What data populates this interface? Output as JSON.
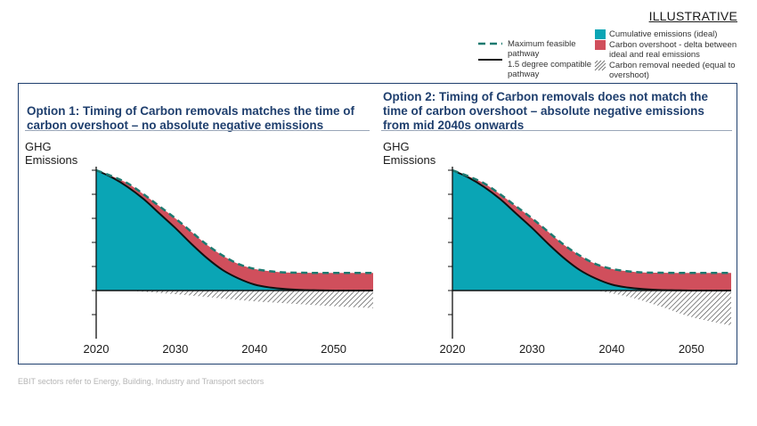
{
  "tag": "ILLUSTRATIVE",
  "legend": {
    "max_feasible": "Maximum feasible pathway",
    "one_five": "1.5 degree compatible pathway",
    "cumulative": "Cumulative emissions (ideal)",
    "overshoot": "Carbon overshoot - delta between ideal and real emissions",
    "removal": "Carbon removal needed (equal to overshoot)"
  },
  "colors": {
    "teal": "#0aa5b5",
    "red": "#d04f5c",
    "navy": "#1f3f6e",
    "dash": "#1d7a70"
  },
  "footnote": "EBIT sectors refer to Energy, Building, Industry and Transport sectors",
  "chart_data": [
    {
      "type": "area",
      "title": "Option 1: Timing of Carbon removals matches the time of carbon overshoot – no absolute negative emissions",
      "ylabel": "GHG Emissions",
      "xlabel": "",
      "x_ticks": [
        2020,
        2030,
        2040,
        2050
      ],
      "xlim": [
        2020,
        2055
      ],
      "series": [
        {
          "name": "Cumulative emissions (ideal)",
          "x": [
            2020,
            2022,
            2024,
            2026,
            2028,
            2030,
            2032,
            2034,
            2036,
            2038,
            2040,
            2042,
            2044,
            2046,
            2048,
            2050,
            2052,
            2055
          ],
          "values": [
            100,
            94,
            86,
            76,
            64,
            52,
            39,
            27,
            17,
            10,
            5,
            2.5,
            1.2,
            0.5,
            0.2,
            0,
            0,
            0
          ]
        },
        {
          "name": "Maximum feasible pathway",
          "x": [
            2020,
            2022,
            2024,
            2026,
            2028,
            2030,
            2032,
            2034,
            2036,
            2038,
            2040,
            2042,
            2044,
            2046,
            2048,
            2050,
            2052,
            2055
          ],
          "values": [
            100,
            95,
            89,
            80,
            70,
            60,
            49,
            38,
            29,
            22,
            18,
            16,
            15,
            14.8,
            14.6,
            14.6,
            14.6,
            14.6
          ]
        },
        {
          "name": "Carbon removal needed (equal to overshoot)",
          "x": [
            2024,
            2030,
            2035,
            2040,
            2045,
            2050,
            2055
          ],
          "values": [
            0,
            -3,
            -6,
            -9,
            -11,
            -13,
            -14.6
          ]
        }
      ]
    },
    {
      "type": "area",
      "title": "Option 2: Timing of Carbon removals does not match the time of carbon overshoot – absolute negative emissions from mid 2040s onwards",
      "ylabel": "GHG Emissions",
      "xlabel": "",
      "x_ticks": [
        2020,
        2030,
        2040,
        2050
      ],
      "xlim": [
        2020,
        2055
      ],
      "series": [
        {
          "name": "Cumulative emissions (ideal)",
          "x": [
            2020,
            2022,
            2024,
            2026,
            2028,
            2030,
            2032,
            2034,
            2036,
            2038,
            2040,
            2042,
            2044,
            2046,
            2048,
            2050,
            2052,
            2055
          ],
          "values": [
            100,
            94,
            86,
            76,
            64,
            52,
            39,
            27,
            17,
            10,
            5,
            2.5,
            1.2,
            0.5,
            0.2,
            0,
            0,
            0
          ]
        },
        {
          "name": "Maximum feasible pathway",
          "x": [
            2020,
            2022,
            2024,
            2026,
            2028,
            2030,
            2032,
            2034,
            2036,
            2038,
            2040,
            2042,
            2044,
            2046,
            2048,
            2050,
            2052,
            2055
          ],
          "values": [
            100,
            95,
            89,
            80,
            70,
            60,
            49,
            38,
            29,
            22,
            18,
            16,
            15,
            14.8,
            14.6,
            14.6,
            14.6,
            14.6
          ]
        },
        {
          "name": "Carbon removal needed (equal to overshoot)",
          "x": [
            2038,
            2042,
            2046,
            2050,
            2055
          ],
          "values": [
            0,
            -5,
            -13,
            -22,
            -29
          ]
        }
      ]
    }
  ]
}
